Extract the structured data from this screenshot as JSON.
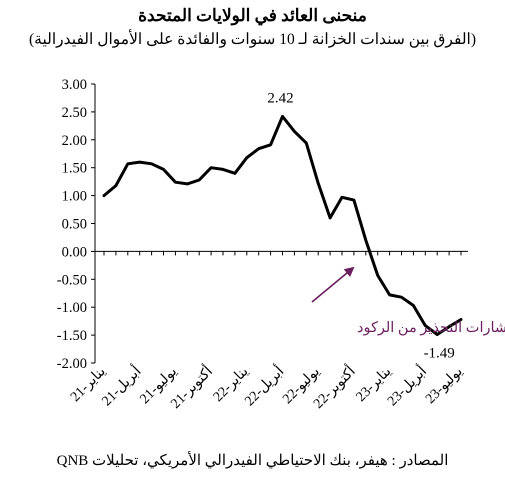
{
  "chart_data": {
    "type": "line",
    "title": "منحنى العائد في الولايات المتحدة",
    "subtitle": "(الفرق بين سندات الخزانة لـ 10 سنوات والفائدة على الأموال الفيدرالية)",
    "source": "المصادر : هيفر، بنك الاحتياطي الفيدرالي الأمريكي، تحليلات QNB",
    "ylim": [
      -2.0,
      3.0
    ],
    "yticks": [
      "3.00",
      "2.50",
      "2.00",
      "1.50",
      "1.00",
      "0.50",
      "0.00",
      "-0.50",
      "-1.00",
      "-1.50",
      "-2.00"
    ],
    "ytick_values": [
      3.0,
      2.5,
      2.0,
      1.5,
      1.0,
      0.5,
      0.0,
      -0.5,
      -1.0,
      -1.5,
      -2.0
    ],
    "x_labels": [
      "يناير-21",
      "أبريل-21",
      "يوليو-21",
      "أكتوبر-21",
      "يناير-22",
      "أبريل-22",
      "يوليو-22",
      "أكتوبر-22",
      "يناير-23",
      "أبريل-23",
      "يوليو-23"
    ],
    "x_label_index": [
      0,
      3,
      6,
      9,
      12,
      15,
      18,
      21,
      24,
      27,
      30
    ],
    "series": [
      {
        "values": [
          1.0,
          1.18,
          1.57,
          1.6,
          1.57,
          1.47,
          1.24,
          1.21,
          1.28,
          1.5,
          1.47,
          1.4,
          1.68,
          1.84,
          1.91,
          2.42,
          2.15,
          1.94,
          1.22,
          0.6,
          0.97,
          0.92,
          0.2,
          -0.43,
          -0.78,
          -0.82,
          -0.97,
          -1.33,
          -1.49,
          -1.35,
          -1.22
        ],
        "color": "#000000"
      }
    ],
    "annotations": {
      "max_label": "2.42",
      "min_label": "-1.49",
      "arrow_label": "انطلاق إشارات التحذير من الركود",
      "arrow_color": "#6b1f5f"
    },
    "grid": false
  }
}
